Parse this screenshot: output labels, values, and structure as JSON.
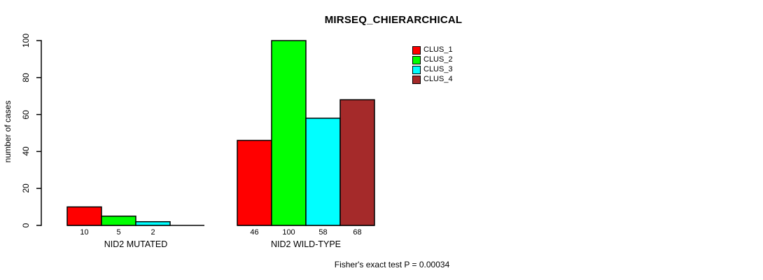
{
  "chart_data": {
    "type": "bar",
    "title": "MIRSEQ_CHIERARCHICAL",
    "ylabel": "number of cases",
    "xlabel": "",
    "ylim": [
      0,
      100
    ],
    "yticks": [
      0,
      20,
      40,
      60,
      80,
      100
    ],
    "grid": false,
    "categories": [
      "NID2 MUTATED",
      "NID2 WILD-TYPE"
    ],
    "series": [
      {
        "name": "CLUS_1",
        "color": "#ff0000",
        "values": [
          10,
          46
        ]
      },
      {
        "name": "CLUS_2",
        "color": "#00ff00",
        "values": [
          5,
          100
        ]
      },
      {
        "name": "CLUS_3",
        "color": "#00ffff",
        "values": [
          2,
          58
        ]
      },
      {
        "name": "CLUS_4",
        "color": "#a52a2a",
        "values": [
          0,
          68
        ]
      }
    ],
    "bar_value_labels": [
      [
        "10",
        "5",
        "2",
        ""
      ],
      [
        "46",
        "100",
        "58",
        "68"
      ]
    ],
    "legend": {
      "position": "top-right",
      "entries": [
        "CLUS_1",
        "CLUS_2",
        "CLUS_3",
        "CLUS_4"
      ]
    },
    "footnote": "Fisher's exact test P = 0.00034",
    "axis_color": "#000000",
    "bar_border_color": "#000000"
  }
}
